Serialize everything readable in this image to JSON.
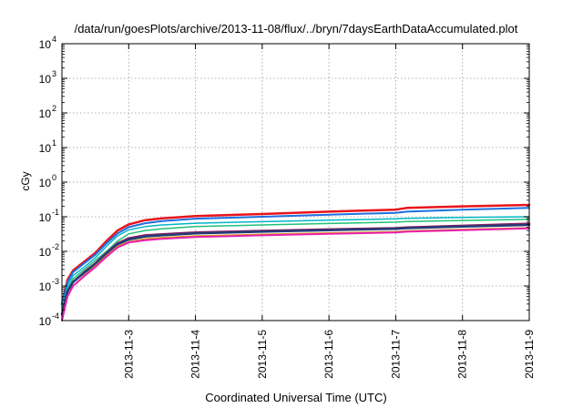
{
  "chart_data": {
    "type": "line",
    "title": "/data/run/goesPlots/archive/2013-11-08/flux/../bryn/7daysEarthDataAccumulated.plot",
    "xlabel": "Coordinated Universal Time (UTC)",
    "ylabel": "cGy",
    "yscale": "log",
    "ylim": [
      0.0001,
      10000
    ],
    "xlim": [
      "2013-11-02",
      "2013-11-09"
    ],
    "grid": true,
    "legend": "none",
    "y_ticks": [
      {
        "value": 0.0001,
        "base": "10",
        "exp": "-4"
      },
      {
        "value": 0.001,
        "base": "10",
        "exp": "-3"
      },
      {
        "value": 0.01,
        "base": "10",
        "exp": "-2"
      },
      {
        "value": 0.1,
        "base": "10",
        "exp": "-1"
      },
      {
        "value": 1,
        "base": "10",
        "exp": "0"
      },
      {
        "value": 10,
        "base": "10",
        "exp": "1"
      },
      {
        "value": 100,
        "base": "10",
        "exp": "2"
      },
      {
        "value": 1000,
        "base": "10",
        "exp": "3"
      },
      {
        "value": 10000,
        "base": "10",
        "exp": "4"
      }
    ],
    "x_ticks": [
      "2013-11-3",
      "2013-11-4",
      "2013-11-5",
      "2013-11-6",
      "2013-11-7",
      "2013-11-8",
      "2013-11-9"
    ],
    "x": [
      "2013-11-02 00:00",
      "2013-11-02 02:00",
      "2013-11-02 04:00",
      "2013-11-02 08:00",
      "2013-11-02 12:00",
      "2013-11-02 16:00",
      "2013-11-02 20:00",
      "2013-11-03 00:00",
      "2013-11-03 06:00",
      "2013-11-03 12:00",
      "2013-11-04 00:00",
      "2013-11-05 00:00",
      "2013-11-06 00:00",
      "2013-11-07 00:00",
      "2013-11-07 04:00",
      "2013-11-08 00:00",
      "2013-11-09 00:00"
    ],
    "series": [
      {
        "color": "#e8141c",
        "width": 2.5,
        "values": [
          0.0003,
          0.0015,
          0.0028,
          0.005,
          0.009,
          0.02,
          0.04,
          0.06,
          0.08,
          0.09,
          0.105,
          0.12,
          0.14,
          0.16,
          0.18,
          0.2,
          0.22
        ]
      },
      {
        "color": "#1f6fe0",
        "width": 2,
        "values": [
          0.0003,
          0.0013,
          0.0025,
          0.0045,
          0.008,
          0.017,
          0.033,
          0.05,
          0.065,
          0.075,
          0.088,
          0.1,
          0.115,
          0.13,
          0.14,
          0.16,
          0.18
        ]
      },
      {
        "color": "#00b6c8",
        "width": 1.5,
        "values": [
          0.00025,
          0.001,
          0.002,
          0.0035,
          0.0065,
          0.014,
          0.028,
          0.042,
          0.052,
          0.058,
          0.065,
          0.072,
          0.08,
          0.087,
          0.09,
          0.095,
          0.1
        ]
      },
      {
        "color": "#22c07a",
        "width": 1.5,
        "values": [
          0.0002,
          0.0008,
          0.0016,
          0.003,
          0.0055,
          0.01,
          0.02,
          0.032,
          0.04,
          0.045,
          0.052,
          0.058,
          0.064,
          0.07,
          0.073,
          0.078,
          0.085
        ]
      },
      {
        "color": "#8a2060",
        "width": 2.5,
        "values": [
          0.00015,
          0.0007,
          0.0013,
          0.0025,
          0.0045,
          0.009,
          0.017,
          0.024,
          0.029,
          0.031,
          0.035,
          0.039,
          0.043,
          0.047,
          0.049,
          0.055,
          0.063
        ]
      },
      {
        "color": "#243a78",
        "width": 2.5,
        "values": [
          0.00015,
          0.0007,
          0.0013,
          0.0024,
          0.0043,
          0.0085,
          0.016,
          0.022,
          0.027,
          0.029,
          0.033,
          0.037,
          0.041,
          0.045,
          0.047,
          0.052,
          0.058
        ]
      },
      {
        "color": "#d4a010",
        "width": 1.5,
        "values": [
          0.0001,
          0.0005,
          0.001,
          0.002,
          0.0038,
          0.0075,
          0.014,
          0.019,
          0.023,
          0.025,
          0.028,
          0.031,
          0.034,
          0.037,
          0.039,
          0.043,
          0.048
        ]
      },
      {
        "color": "#e820b0",
        "width": 2,
        "values": [
          0.0001,
          0.0005,
          0.001,
          0.0019,
          0.0035,
          0.007,
          0.013,
          0.018,
          0.021,
          0.023,
          0.026,
          0.029,
          0.032,
          0.035,
          0.037,
          0.041,
          0.046
        ]
      }
    ]
  }
}
